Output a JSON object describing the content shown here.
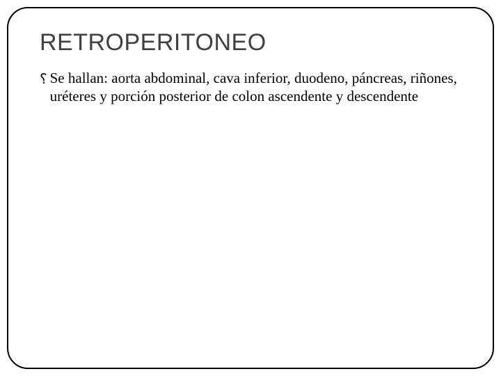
{
  "slide": {
    "title": "RETROPERITONEO",
    "bullet_icon": "༄",
    "bullets": [
      {
        "text": "Se hallan: aorta abdominal, cava inferior, duodeno, páncreas, riñones, uréteres y porción posterior de colon ascendente y descendente"
      }
    ],
    "styling": {
      "title_color": "#404040",
      "text_color": "#000000",
      "border_color": "#000000",
      "background_color": "#ffffff",
      "title_fontsize": 34,
      "body_fontsize": 21,
      "border_radius": 30,
      "border_width": 2
    }
  }
}
